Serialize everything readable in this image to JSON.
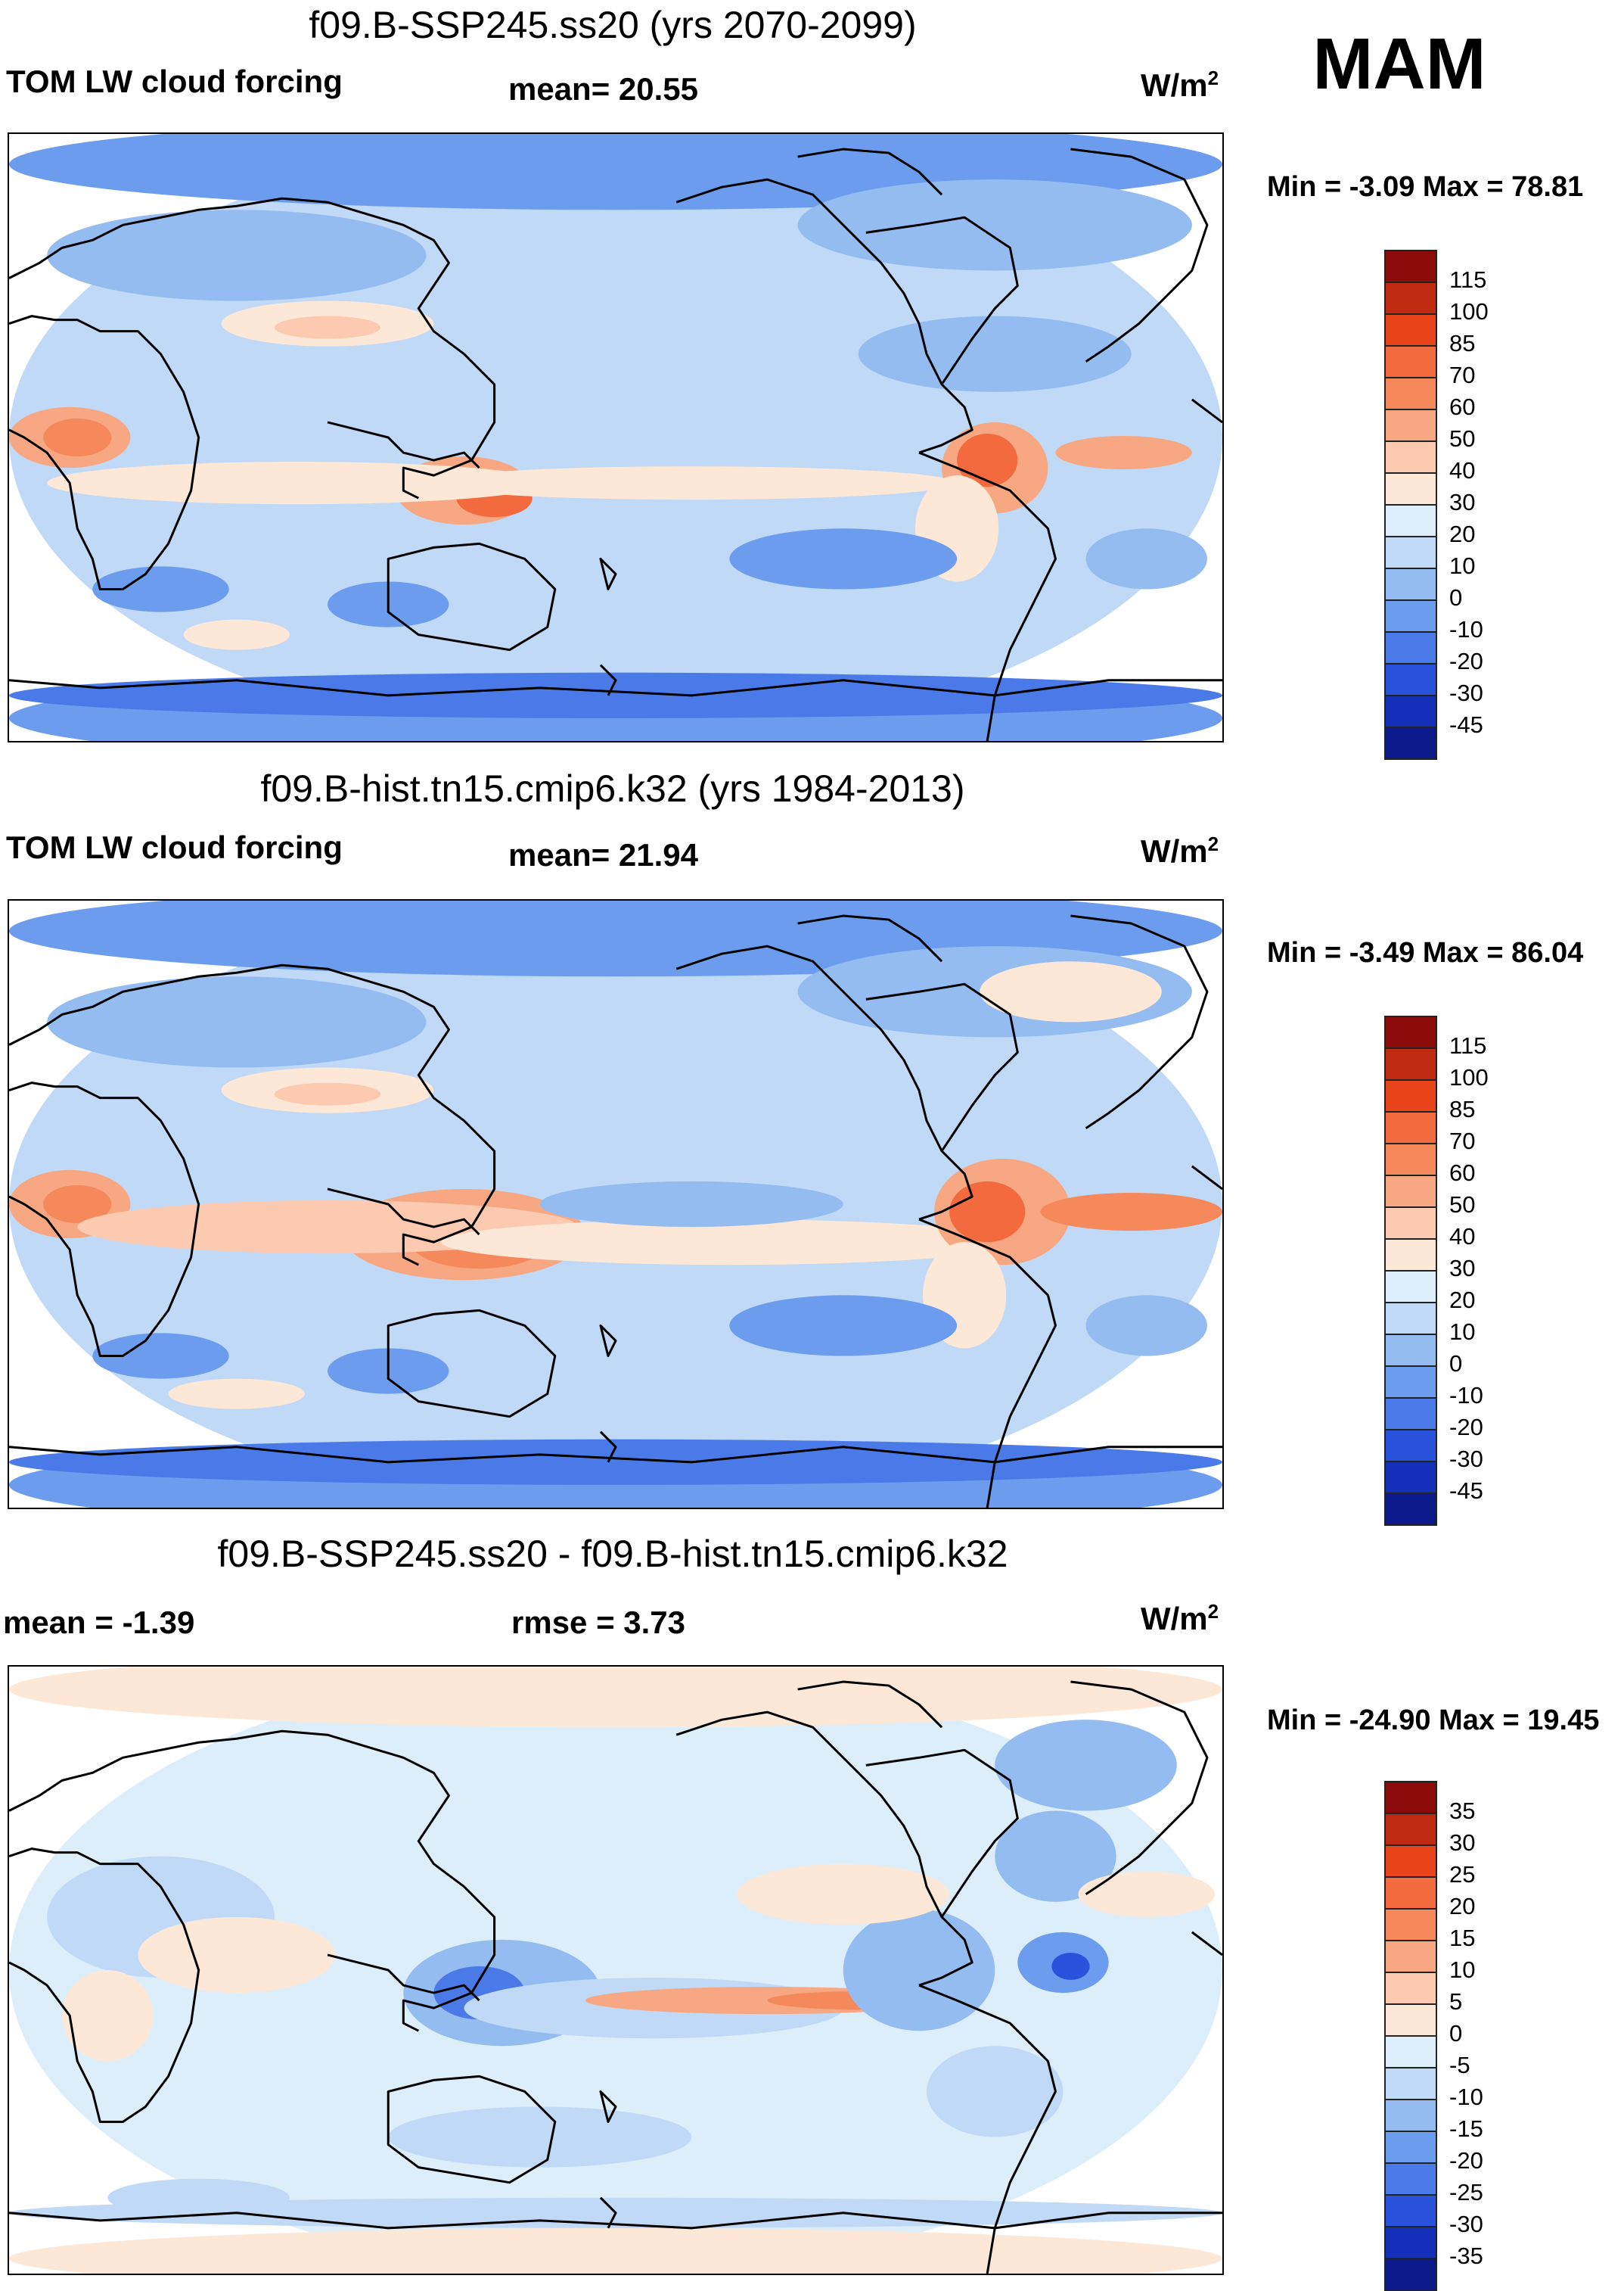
{
  "season": "MAM",
  "panels": [
    {
      "title": "f09.B-SSP245.ss20 (yrs 2070-2099)",
      "left_label": "TOM LW cloud forcing",
      "center_label": "mean=  20.55",
      "units_base": "W/m",
      "units_exp": "2",
      "minmax": "Min =  -3.09 Max =  78.81",
      "map_kind": "model"
    },
    {
      "title": "f09.B-hist.tn15.cmip6.k32 (yrs 1984-2013)",
      "left_label": "TOM LW cloud forcing",
      "center_label": "mean=  21.94",
      "units_base": "W/m",
      "units_exp": "2",
      "minmax": "Min =  -3.49 Max =  86.04",
      "map_kind": "model"
    },
    {
      "title": "f09.B-SSP245.ss20 - f09.B-hist.tn15.cmip6.k32",
      "left_label": "mean =  -1.39",
      "center_label": "rmse =    3.73",
      "units_base": "W/m",
      "units_exp": "2",
      "minmax": "Min = -24.90 Max =  19.45",
      "map_kind": "diff"
    }
  ],
  "colorbars": {
    "model": {
      "labels": [
        "115",
        "100",
        "85",
        "70",
        "60",
        "50",
        "40",
        "30",
        "20",
        "10",
        "0",
        "-10",
        "-20",
        "-30",
        "-45"
      ],
      "colors": [
        "#8b0a0a",
        "#c02a10",
        "#e8441a",
        "#f26a3e",
        "#f5895c",
        "#f7a882",
        "#fbcab0",
        "#fde8d8",
        "#ddeefb",
        "#bfd9f7",
        "#95bcf0",
        "#6c9ced",
        "#4a7ae8",
        "#2a53dd",
        "#1530b8",
        "#0a1a8a"
      ]
    },
    "diff": {
      "labels": [
        "35",
        "30",
        "25",
        "20",
        "15",
        "10",
        "5",
        "0",
        "-5",
        "-10",
        "-15",
        "-20",
        "-25",
        "-30",
        "-35"
      ],
      "colors": [
        "#8b0a0a",
        "#c02a10",
        "#e8441a",
        "#f26a3e",
        "#f5895c",
        "#f7a882",
        "#fbcab0",
        "#fde8d8",
        "#ddeefb",
        "#bfd9f7",
        "#95bcf0",
        "#6c9ced",
        "#4a7ae8",
        "#2a53dd",
        "#1530b8",
        "#0a1a8a"
      ]
    }
  }
}
